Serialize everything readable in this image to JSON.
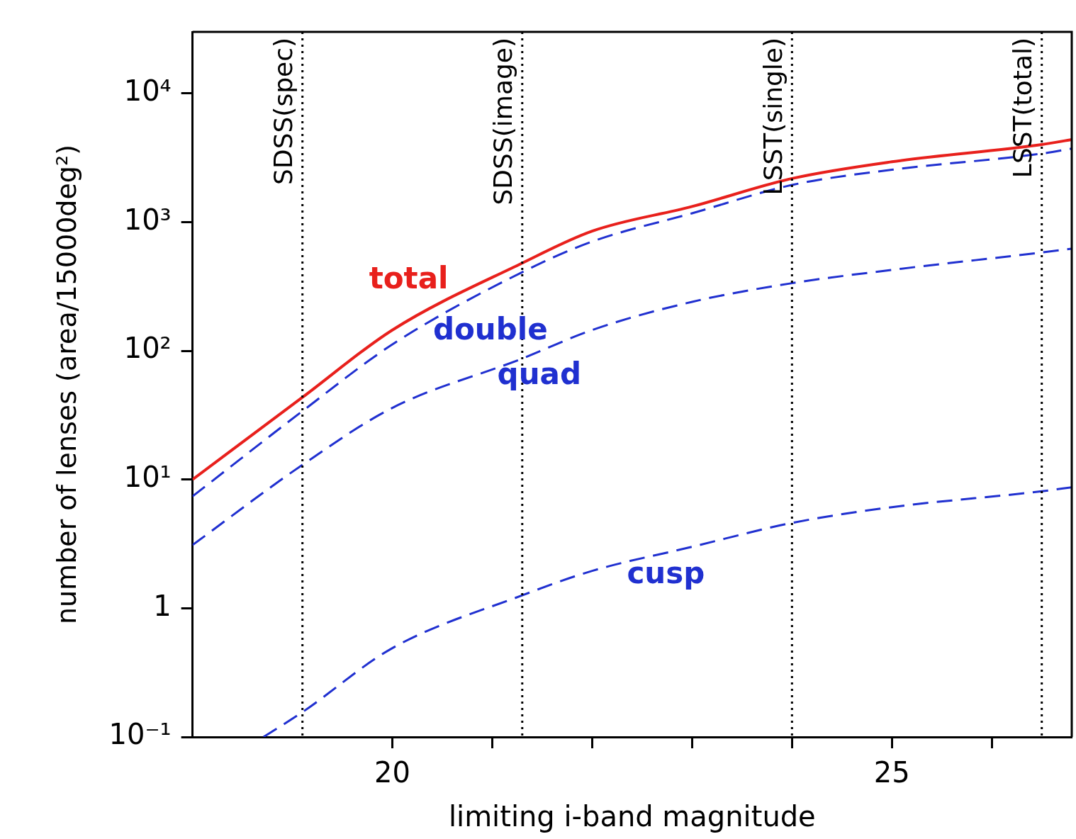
{
  "chart_data": {
    "type": "line",
    "xlabel": "limiting i-band magnitude",
    "ylabel": "number of lenses (area/15000deg²)",
    "log": "y",
    "x": [
      18,
      19.1,
      20,
      21.3,
      22,
      23,
      24,
      25,
      26.5,
      26.8
    ],
    "series": [
      {
        "name": "total",
        "color": "#e8201c",
        "line_style": "solid",
        "values": [
          10,
          43.5,
          145,
          480,
          850,
          1320,
          2180,
          2940,
          4000,
          4370
        ]
      },
      {
        "name": "double",
        "color": "#2030d0",
        "line_style": "dashed",
        "values": [
          7.4,
          34,
          112,
          408,
          705,
          1170,
          1940,
          2550,
          3400,
          3720
        ]
      },
      {
        "name": "quad",
        "color": "#2030d0",
        "line_style": "dashed",
        "values": [
          3.1,
          13,
          36,
          87,
          145,
          240,
          335,
          425,
          580,
          620
        ]
      },
      {
        "name": "cusp",
        "color": "#2030d0",
        "line_style": "dashed",
        "x": [
          18.71,
          19.1,
          20,
          21.3,
          22,
          23,
          24,
          25,
          26.5,
          26.8
        ],
        "values": [
          0.1,
          0.156,
          0.49,
          1.26,
          1.95,
          3.0,
          4.6,
          6.1,
          8.1,
          8.7
        ]
      }
    ],
    "xlim": [
      18,
      26.8
    ],
    "xticks": [
      20,
      {
        "value": 21,
        "label": null
      },
      {
        "value": 22,
        "label": null
      },
      {
        "value": 23,
        "label": null
      },
      {
        "value": 24,
        "label": null
      },
      25,
      {
        "value": 26,
        "label": null
      }
    ],
    "ylim": [
      0.1,
      30000
    ],
    "yticks": [
      {
        "value": 0.1,
        "label": "10⁻¹"
      },
      1,
      {
        "value": 10,
        "label": "10¹"
      },
      {
        "value": 100,
        "label": "10²"
      },
      {
        "value": 1000,
        "label": "10³"
      },
      {
        "value": 10000,
        "label": "10⁴"
      }
    ],
    "ref_lines": [
      {
        "axis": "x",
        "value": 19.1,
        "label": "SDSS(spec)",
        "color": "#000000",
        "line_style": "dotted"
      },
      {
        "axis": "x",
        "value": 21.3,
        "label": "SDSS(image)",
        "color": "#000000",
        "line_style": "dotted"
      },
      {
        "axis": "x",
        "value": 24,
        "label": "LSST(single)",
        "color": "#000000",
        "line_style": "dotted"
      },
      {
        "axis": "x",
        "value": 26.5,
        "label": "LSST(total)",
        "color": "#000000",
        "line_style": "dotted"
      }
    ],
    "grid": false,
    "legend": false,
    "marker": "none"
  }
}
